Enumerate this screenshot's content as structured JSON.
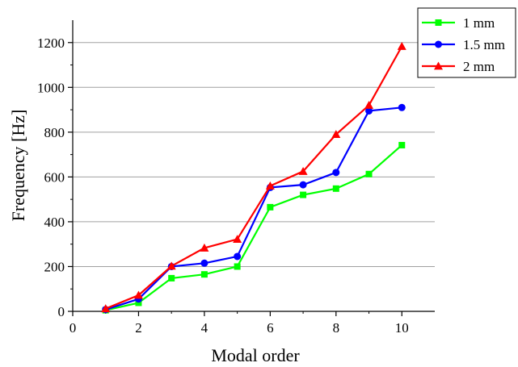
{
  "chart_data": {
    "type": "line",
    "xlabel": "Modal order",
    "ylabel": "Frequency [Hz]",
    "xlim": [
      0,
      11
    ],
    "ylim": [
      0,
      1300
    ],
    "xticks": [
      0,
      2,
      4,
      6,
      8,
      10
    ],
    "yticks": [
      0,
      200,
      400,
      600,
      800,
      1000,
      1200
    ],
    "grid": "horizontal",
    "legend_position": "top-right",
    "x": [
      1,
      2,
      3,
      4,
      5,
      6,
      7,
      8,
      9,
      10
    ],
    "series": [
      {
        "name": "1 mm",
        "color": "#00ff00",
        "marker": "square",
        "values": [
          5,
          38,
          148,
          165,
          200,
          465,
          520,
          548,
          613,
          742
        ]
      },
      {
        "name": "1.5 mm",
        "color": "#0000ff",
        "marker": "circle",
        "values": [
          8,
          55,
          200,
          215,
          245,
          553,
          565,
          620,
          895,
          910
        ]
      },
      {
        "name": "2 mm",
        "color": "#ff0000",
        "marker": "triangle",
        "values": [
          12,
          72,
          202,
          283,
          322,
          560,
          625,
          790,
          920,
          1183
        ]
      }
    ]
  }
}
